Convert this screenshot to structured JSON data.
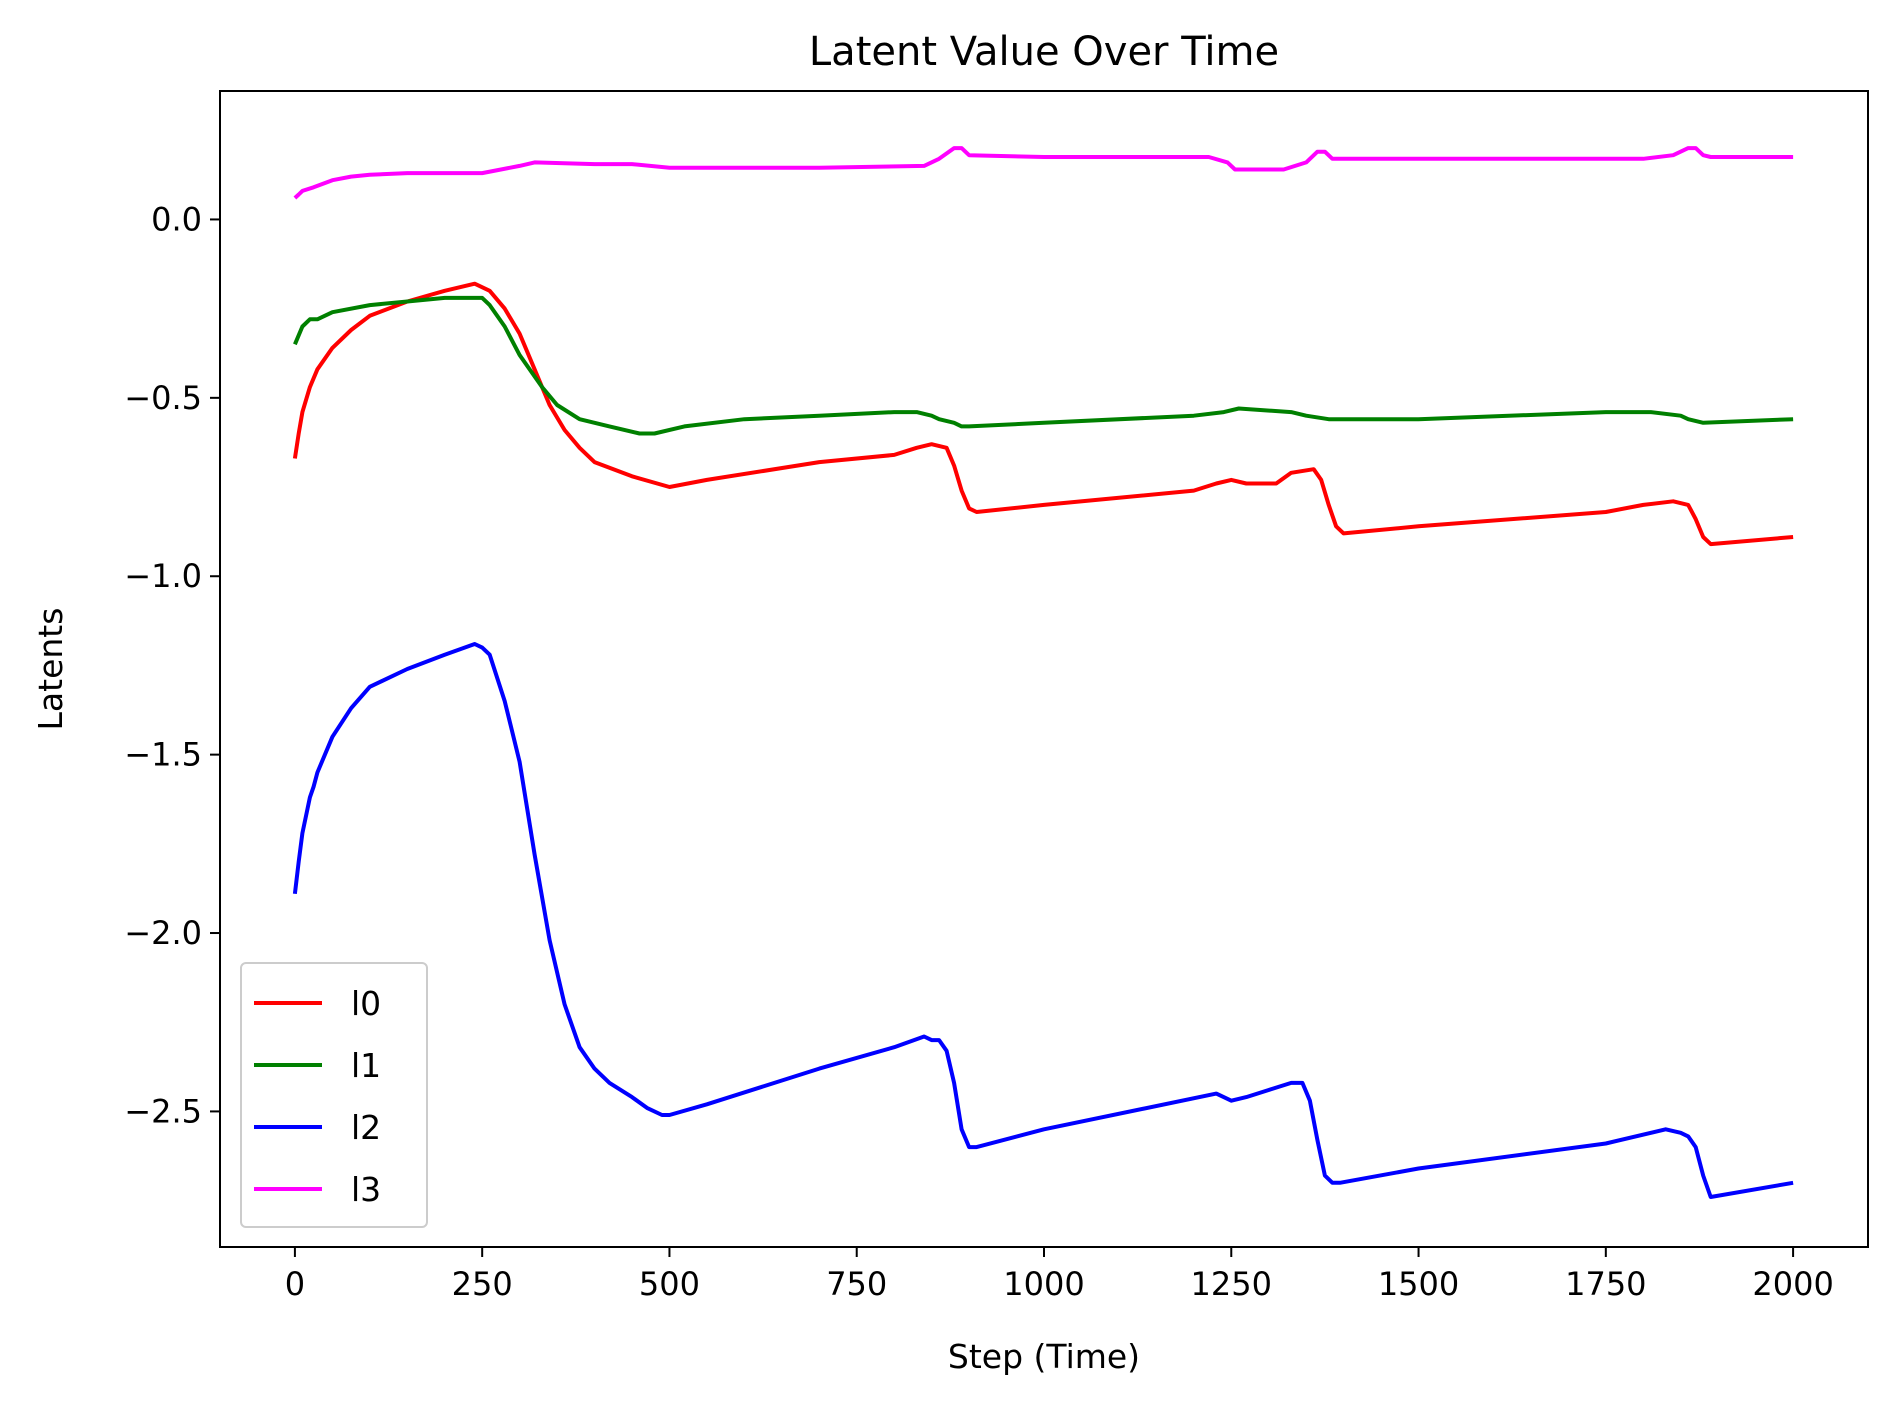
{
  "chart_data": {
    "type": "line",
    "title": "Latent Value Over Time",
    "xlabel": "Step (Time)",
    "ylabel": "Latents",
    "xlim": [
      -100,
      2100
    ],
    "ylim": [
      -2.88,
      0.36
    ],
    "xticks": [
      0,
      250,
      500,
      750,
      1000,
      1250,
      1500,
      1750,
      2000
    ],
    "xtick_labels": [
      "0",
      "250",
      "500",
      "750",
      "1000",
      "1250",
      "1500",
      "1750",
      "2000"
    ],
    "yticks": [
      0.0,
      -0.5,
      -1.0,
      -1.5,
      -2.0,
      -2.5
    ],
    "ytick_labels": [
      "0.0",
      "−0.5",
      "−1.0",
      "−1.5",
      "−2.0",
      "−2.5"
    ],
    "grid": false,
    "legend_position": "lower-left",
    "series": [
      {
        "name": "l0",
        "color": "#ff0000",
        "x": [
          0,
          5,
          10,
          20,
          30,
          50,
          75,
          100,
          150,
          200,
          240,
          260,
          280,
          300,
          320,
          340,
          360,
          380,
          400,
          450,
          500,
          550,
          700,
          800,
          830,
          850,
          870,
          880,
          890,
          900,
          910,
          1000,
          1200,
          1230,
          1250,
          1270,
          1310,
          1330,
          1360,
          1370,
          1380,
          1390,
          1400,
          1500,
          1750,
          1800,
          1840,
          1860,
          1870,
          1880,
          1890,
          2000
        ],
        "y": [
          -0.67,
          -0.6,
          -0.54,
          -0.47,
          -0.42,
          -0.36,
          -0.31,
          -0.27,
          -0.23,
          -0.2,
          -0.18,
          -0.2,
          -0.25,
          -0.32,
          -0.42,
          -0.52,
          -0.59,
          -0.64,
          -0.68,
          -0.72,
          -0.75,
          -0.73,
          -0.68,
          -0.66,
          -0.64,
          -0.63,
          -0.64,
          -0.69,
          -0.76,
          -0.81,
          -0.82,
          -0.8,
          -0.76,
          -0.74,
          -0.73,
          -0.74,
          -0.74,
          -0.71,
          -0.7,
          -0.73,
          -0.8,
          -0.86,
          -0.88,
          -0.86,
          -0.82,
          -0.8,
          -0.79,
          -0.8,
          -0.84,
          -0.89,
          -0.91,
          -0.89
        ]
      },
      {
        "name": "l1",
        "color": "#008000",
        "x": [
          0,
          10,
          20,
          30,
          50,
          100,
          150,
          200,
          250,
          260,
          280,
          300,
          330,
          350,
          380,
          420,
          460,
          480,
          520,
          600,
          700,
          800,
          830,
          850,
          860,
          880,
          890,
          900,
          1000,
          1200,
          1240,
          1260,
          1330,
          1350,
          1380,
          1390,
          1400,
          1500,
          1750,
          1810,
          1850,
          1860,
          1880,
          2000
        ],
        "y": [
          -0.35,
          -0.3,
          -0.28,
          -0.28,
          -0.26,
          -0.24,
          -0.23,
          -0.22,
          -0.22,
          -0.24,
          -0.3,
          -0.38,
          -0.47,
          -0.52,
          -0.56,
          -0.58,
          -0.6,
          -0.6,
          -0.58,
          -0.56,
          -0.55,
          -0.54,
          -0.54,
          -0.55,
          -0.56,
          -0.57,
          -0.58,
          -0.58,
          -0.57,
          -0.55,
          -0.54,
          -0.53,
          -0.54,
          -0.55,
          -0.56,
          -0.56,
          -0.56,
          -0.56,
          -0.54,
          -0.54,
          -0.55,
          -0.56,
          -0.57,
          -0.56
        ]
      },
      {
        "name": "l2",
        "color": "#0000ff",
        "x": [
          0,
          5,
          10,
          20,
          25,
          30,
          50,
          75,
          100,
          150,
          200,
          240,
          250,
          260,
          280,
          300,
          320,
          340,
          360,
          380,
          400,
          420,
          450,
          470,
          490,
          500,
          550,
          700,
          800,
          840,
          850,
          860,
          870,
          880,
          890,
          900,
          910,
          1000,
          1230,
          1250,
          1270,
          1300,
          1330,
          1345,
          1355,
          1365,
          1375,
          1385,
          1395,
          1500,
          1750,
          1830,
          1850,
          1860,
          1870,
          1880,
          1890,
          2000
        ],
        "y": [
          -1.89,
          -1.8,
          -1.72,
          -1.62,
          -1.59,
          -1.55,
          -1.45,
          -1.37,
          -1.31,
          -1.26,
          -1.22,
          -1.19,
          -1.2,
          -1.22,
          -1.35,
          -1.52,
          -1.78,
          -2.02,
          -2.2,
          -2.32,
          -2.38,
          -2.42,
          -2.46,
          -2.49,
          -2.51,
          -2.51,
          -2.48,
          -2.38,
          -2.32,
          -2.29,
          -2.3,
          -2.3,
          -2.33,
          -2.42,
          -2.55,
          -2.6,
          -2.6,
          -2.55,
          -2.45,
          -2.47,
          -2.46,
          -2.44,
          -2.42,
          -2.42,
          -2.47,
          -2.58,
          -2.68,
          -2.7,
          -2.7,
          -2.66,
          -2.59,
          -2.55,
          -2.56,
          -2.57,
          -2.6,
          -2.68,
          -2.74,
          -2.7
        ]
      },
      {
        "name": "l3",
        "color": "#ff00ff",
        "x": [
          0,
          5,
          10,
          25,
          50,
          75,
          100,
          150,
          250,
          300,
          320,
          400,
          450,
          500,
          700,
          840,
          860,
          880,
          890,
          900,
          1000,
          1220,
          1245,
          1255,
          1275,
          1320,
          1350,
          1365,
          1375,
          1385,
          1400,
          1500,
          1800,
          1840,
          1860,
          1870,
          1880,
          1890,
          2000
        ],
        "y": [
          0.06,
          0.07,
          0.08,
          0.09,
          0.11,
          0.12,
          0.125,
          0.13,
          0.13,
          0.15,
          0.16,
          0.155,
          0.155,
          0.145,
          0.145,
          0.15,
          0.17,
          0.2,
          0.2,
          0.18,
          0.175,
          0.175,
          0.16,
          0.14,
          0.14,
          0.14,
          0.16,
          0.19,
          0.19,
          0.17,
          0.17,
          0.17,
          0.17,
          0.18,
          0.2,
          0.2,
          0.18,
          0.175,
          0.175
        ]
      }
    ]
  }
}
